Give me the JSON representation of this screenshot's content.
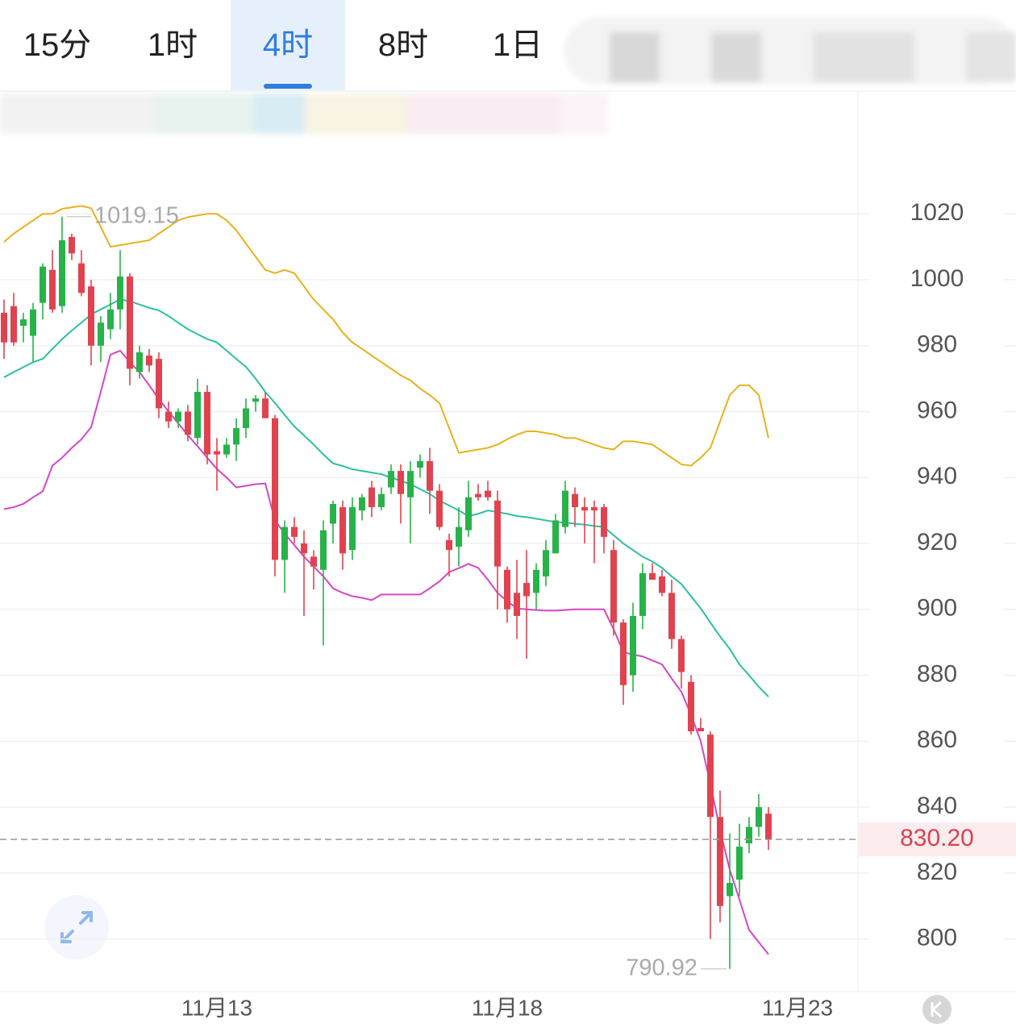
{
  "tabs": [
    "15分",
    "1时",
    "4时",
    "8时",
    "1日"
  ],
  "selected_tab_index": 2,
  "chart_data": {
    "type": "candlestick",
    "categories": [
      null,
      null,
      null,
      null,
      null,
      null,
      null,
      null,
      null,
      null,
      null,
      null,
      null,
      null,
      null,
      null,
      null,
      null,
      null,
      null,
      null,
      null,
      "11月13",
      null,
      null,
      null,
      null,
      null,
      null,
      null,
      null,
      null,
      null,
      null,
      null,
      null,
      null,
      null,
      null,
      null,
      null,
      null,
      null,
      null,
      null,
      null,
      null,
      null,
      null,
      null,
      null,
      null,
      "11月18",
      null,
      null,
      null,
      null,
      null,
      null,
      null,
      null,
      null,
      null,
      null,
      null,
      null,
      null,
      null,
      null,
      null,
      null,
      null,
      null,
      null,
      null,
      null,
      null,
      null,
      null,
      null,
      null,
      null,
      "11月23"
    ],
    "open": [
      990,
      992,
      986,
      983,
      993,
      1003,
      992,
      1013,
      1005,
      998,
      980,
      985,
      991,
      1001,
      972,
      977,
      976,
      960,
      957,
      960,
      952,
      966,
      948,
      947,
      950,
      955,
      963,
      964,
      958,
      915,
      925,
      920,
      916,
      912,
      926,
      931,
      918,
      930,
      937,
      931,
      937,
      942,
      934,
      943,
      945,
      936,
      921,
      919,
      924,
      935,
      936,
      933,
      912,
      905,
      908,
      905,
      910,
      917,
      925,
      935,
      931,
      931,
      931,
      918,
      896,
      880,
      898,
      911,
      910,
      905,
      891,
      878,
      864,
      862,
      837,
      813,
      818,
      829,
      834,
      838,
      null,
      null,
      null
    ],
    "high": [
      994,
      996,
      990,
      993,
      1005,
      1009,
      1019.15,
      1014,
      1009,
      1000,
      989,
      996,
      1009,
      1002,
      980,
      979,
      978,
      963,
      961,
      962,
      970,
      968,
      952,
      952,
      958,
      964,
      965,
      966,
      959,
      927,
      928,
      924,
      918,
      927,
      933,
      933,
      934,
      935,
      939,
      937,
      944,
      944,
      945,
      947,
      949,
      938,
      923,
      931,
      939,
      938,
      939,
      936,
      913,
      915,
      918,
      914,
      921,
      929,
      939,
      937,
      934,
      933,
      932,
      921,
      897,
      902,
      914,
      914,
      912,
      909,
      892,
      880,
      867,
      863,
      845,
      832,
      835,
      837,
      844,
      840,
      null,
      null,
      null
    ],
    "low": [
      976,
      980,
      981,
      975,
      988,
      990,
      990,
      1006,
      995,
      974,
      975,
      982,
      985,
      968,
      970,
      972,
      958,
      955,
      955,
      951,
      950,
      944,
      936,
      946,
      945,
      952,
      960,
      958,
      910,
      905,
      920,
      898,
      906,
      889,
      920,
      912,
      915,
      927,
      928,
      930,
      935,
      926,
      920,
      940,
      929,
      924,
      910,
      913,
      922,
      933,
      933,
      900,
      896,
      891,
      885,
      900,
      907,
      917,
      923,
      925,
      920,
      914,
      917,
      892,
      871,
      875,
      894,
      909,
      904,
      888,
      876,
      862,
      863,
      800,
      805,
      790.92,
      813,
      826,
      831,
      827,
      null,
      null,
      null
    ],
    "close": [
      981,
      981,
      988,
      991,
      1004,
      991,
      1012,
      1008,
      996,
      980,
      987,
      991,
      1001,
      973,
      978,
      974,
      961,
      957,
      960,
      953,
      966,
      947,
      947,
      950,
      955,
      961,
      964,
      958,
      915,
      925,
      922,
      917,
      913,
      924,
      932,
      917,
      931,
      934,
      931,
      935,
      942,
      935,
      942,
      945,
      936,
      925,
      918,
      925,
      934,
      934,
      934,
      913,
      900,
      898,
      904,
      912,
      918,
      927,
      936,
      931,
      930,
      930,
      922,
      896,
      877,
      898,
      911,
      909,
      905,
      891,
      881,
      863,
      863,
      837,
      810,
      817,
      828,
      834,
      840,
      830.2,
      null,
      null,
      null
    ],
    "up_color": "#27b24a",
    "down_color": "#e0434f",
    "series": [
      {
        "color": "#e8b21c",
        "values": [
          1011.5,
          1014,
          1016,
          1018,
          1020,
          1020,
          1021.5,
          1022,
          1022.4,
          1021.7,
          1016,
          1010,
          1010.5,
          1011,
          1011.5,
          1012,
          1014,
          1016,
          1018,
          1019,
          1019.5,
          1020,
          1020,
          1018,
          1015,
          1011,
          1007,
          1003,
          1002,
          1003,
          1002,
          998,
          994,
          991,
          988,
          984,
          981,
          979,
          977,
          975,
          973,
          971,
          969.5,
          967,
          965,
          962.6,
          955,
          947.5,
          948,
          948.5,
          949,
          950,
          951.6,
          953,
          954,
          954,
          953.5,
          953,
          952,
          952,
          951,
          950,
          949,
          948.5,
          951,
          951,
          950.5,
          950,
          948,
          946,
          944,
          943.6,
          946,
          949,
          957,
          965,
          968,
          968,
          965,
          952,
          null,
          null,
          null
        ]
      },
      {
        "color": "#2cc0a0",
        "values": [
          970.4,
          972,
          973.5,
          975,
          976,
          979,
          982,
          984.6,
          987,
          989.5,
          991,
          992.5,
          994,
          993.5,
          992.5,
          991.5,
          990.7,
          989,
          987,
          985,
          983.5,
          982,
          981,
          978.5,
          976,
          973.6,
          970,
          966,
          962.6,
          959,
          955.5,
          952.8,
          950,
          947,
          944.3,
          943.5,
          942.5,
          942,
          941.5,
          941,
          940,
          939,
          938,
          936.5,
          935,
          933,
          931.5,
          930,
          928.3,
          929,
          930,
          929.5,
          929,
          928.3,
          928,
          927.5,
          927,
          926.5,
          926.3,
          926,
          925.7,
          925.3,
          925,
          922.5,
          920,
          918,
          916,
          914.5,
          912.6,
          910,
          907.7,
          904,
          900.3,
          896,
          891.8,
          888,
          883.3,
          880,
          876.5,
          873.5,
          null,
          null,
          null
        ]
      },
      {
        "color": "#d546c4",
        "values": [
          930.4,
          931,
          932,
          934,
          935.8,
          943.6,
          946,
          949,
          951.6,
          955.3,
          966,
          977.3,
          978.5,
          975,
          972,
          968,
          963.8,
          960,
          956.5,
          952.8,
          949.5,
          946,
          942.6,
          940,
          937,
          937.5,
          938,
          938.2,
          927,
          923,
          919.5,
          916,
          913,
          910,
          906.4,
          905,
          904,
          903.5,
          902.8,
          904.5,
          904.5,
          904.5,
          904.5,
          904.5,
          906.4,
          908.5,
          911.3,
          912.5,
          913.8,
          912.6,
          909,
          905,
          902.5,
          900.3,
          900,
          899.8,
          899.6,
          899.6,
          899.8,
          900,
          900,
          900,
          900,
          894,
          887,
          886.3,
          885.7,
          884.5,
          883.3,
          879,
          875,
          868,
          860,
          847,
          833,
          821,
          812,
          802.7,
          799,
          795.3,
          null,
          null,
          null
        ]
      }
    ],
    "current_price": {
      "value": 830.2,
      "label": "830.20"
    },
    "ylim": [
      784,
      1057
    ],
    "yticks": [
      800,
      820,
      840,
      860,
      880,
      900,
      920,
      940,
      960,
      980,
      1000,
      1020
    ],
    "grid": true
  }
}
